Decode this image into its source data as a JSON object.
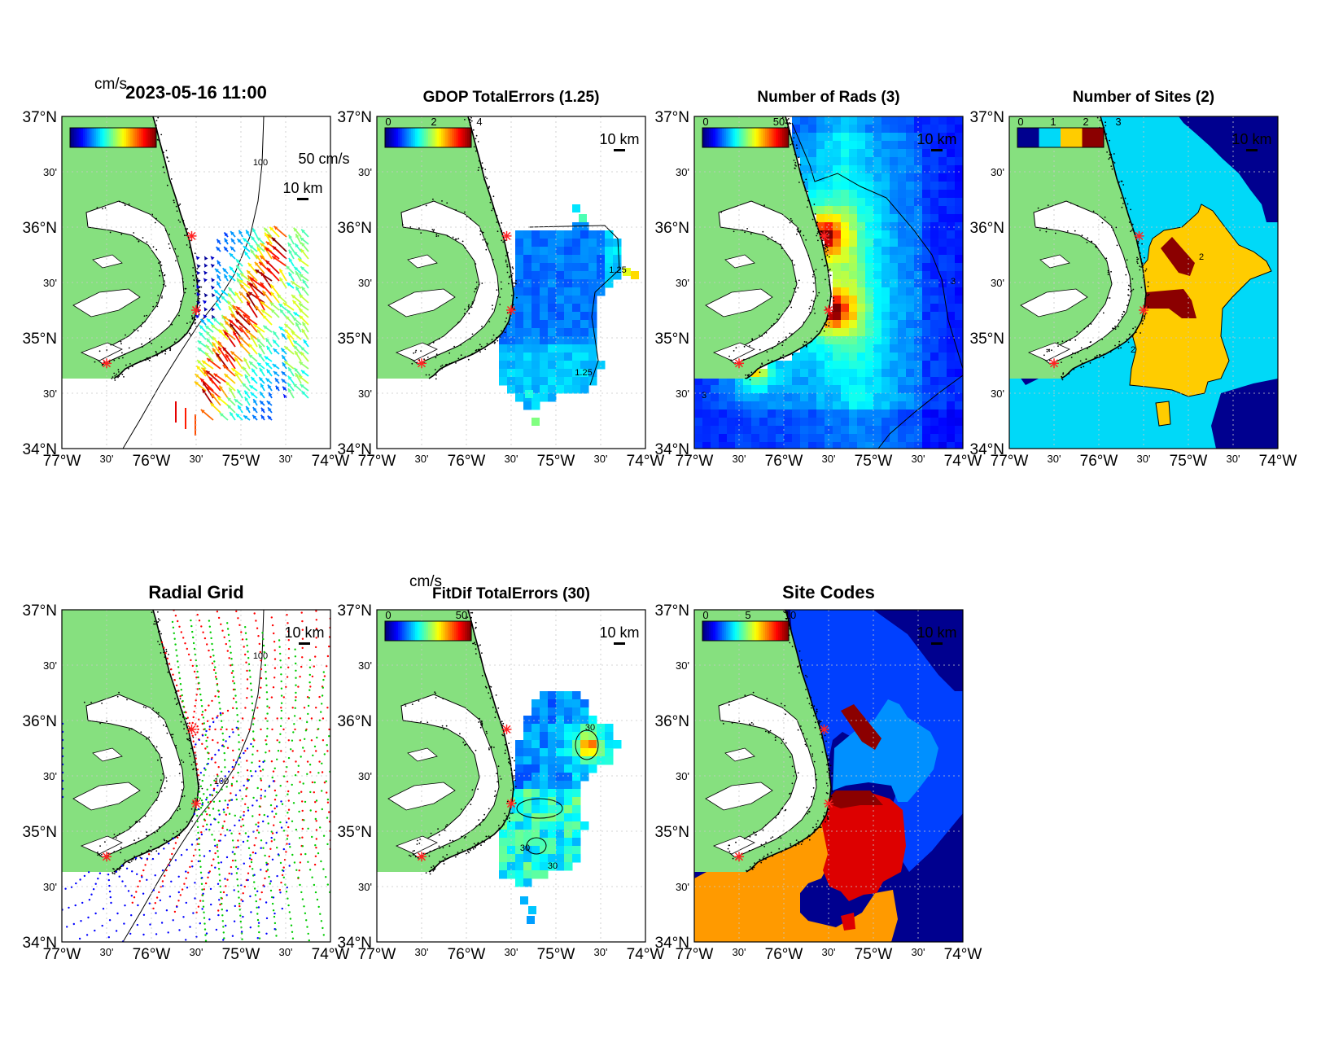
{
  "figure": {
    "panels": [
      {
        "id": "currents",
        "title": "2023-05-16 11:00",
        "colorbar_unit": "cm/s",
        "colorbar_ticks": [],
        "reference_vector": "50 cm/s",
        "scale_bar": "10 km",
        "contour_label": "100",
        "layer": "vectors"
      },
      {
        "id": "gdop",
        "title": "GDOP TotalErrors (1.25)",
        "colorbar_ticks": [
          "0",
          "2",
          "4"
        ],
        "scale_bar": "10 km",
        "contour_label": "1.25",
        "layer": "field",
        "palette": "jet"
      },
      {
        "id": "nrads",
        "title": "Number of Rads (3)",
        "colorbar_ticks": [
          "0",
          "50"
        ],
        "scale_bar": "10 km",
        "contour_label": "3",
        "layer": "field",
        "palette": "jet"
      },
      {
        "id": "nsites",
        "title": "Number of Sites (2)",
        "colorbar_ticks": [
          "0",
          "1",
          "2",
          "3"
        ],
        "scale_bar": "10 km",
        "contour_label": "2",
        "layer": "categorical"
      },
      {
        "id": "radial-grid",
        "title": "Radial Grid",
        "colorbar_ticks": [],
        "scale_bar": "10 km",
        "contour_label": "100",
        "layer": "radial-grid"
      },
      {
        "id": "fitdif",
        "title": "FitDif TotalErrors (30)",
        "colorbar_unit": "cm/s",
        "colorbar_ticks": [
          "0",
          "50"
        ],
        "scale_bar": "10 km",
        "contour_label": "30",
        "layer": "field",
        "palette": "jet"
      },
      {
        "id": "site-codes",
        "title": "Site Codes",
        "colorbar_ticks": [
          "0",
          "5",
          "10"
        ],
        "scale_bar": "10 km",
        "layer": "categorical"
      }
    ],
    "lat_ticks": [
      {
        "value": 37.0,
        "label": "37°N",
        "major": true
      },
      {
        "value": 36.5,
        "label": "30'",
        "major": false
      },
      {
        "value": 36.0,
        "label": "36°N",
        "major": true
      },
      {
        "value": 35.5,
        "label": "30'",
        "major": false
      },
      {
        "value": 35.0,
        "label": "35°N",
        "major": true
      },
      {
        "value": 34.5,
        "label": "30'",
        "major": false
      },
      {
        "value": 34.0,
        "label": "34°N",
        "major": true
      }
    ],
    "lon_ticks": [
      {
        "value": -77.0,
        "label": "77°W",
        "major": true
      },
      {
        "value": -76.5,
        "label": "30'",
        "major": false
      },
      {
        "value": -76.0,
        "label": "76°W",
        "major": true
      },
      {
        "value": -75.5,
        "label": "30'",
        "major": false
      },
      {
        "value": -75.0,
        "label": "75°W",
        "major": true
      },
      {
        "value": -74.5,
        "label": "30'",
        "major": false
      },
      {
        "value": -74.0,
        "label": "74°W",
        "major": true
      }
    ],
    "map_extent": {
      "lon": [
        -77.0,
        -74.0
      ],
      "lat": [
        34.0,
        37.0
      ]
    },
    "radar_sites": [
      {
        "lon": -75.55,
        "lat": 35.92
      },
      {
        "lon": -75.5,
        "lat": 35.25
      },
      {
        "lon": -76.5,
        "lat": 34.77
      }
    ],
    "colors": {
      "land": "#86e07f",
      "coast": "#000000",
      "site_marker": "#ff2222",
      "grid": "#c8c8c8",
      "category_cyan": "#00d9f8",
      "category_yellow": "#ffcc00",
      "category_darkred": "#8b0000",
      "category_navy": "#00008f",
      "code_blue": "#0040ff",
      "code_lightblue": "#0090ff",
      "code_red": "#dd0000",
      "code_orange": "#ff9a00",
      "radial_red": "#ff0000",
      "radial_green": "#00cc00",
      "radial_blue": "#0000ff"
    }
  }
}
